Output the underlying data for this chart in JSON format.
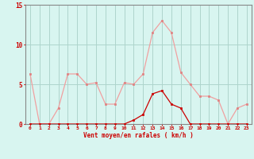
{
  "x": [
    0,
    1,
    2,
    3,
    4,
    5,
    6,
    7,
    8,
    9,
    10,
    11,
    12,
    13,
    14,
    15,
    16,
    17,
    18,
    19,
    20,
    21,
    22,
    23
  ],
  "rafales": [
    6.3,
    0.0,
    0.0,
    2.0,
    6.3,
    6.3,
    5.0,
    5.2,
    2.5,
    2.5,
    5.2,
    5.0,
    6.3,
    11.5,
    13.0,
    11.5,
    6.5,
    5.0,
    3.5,
    3.5,
    3.0,
    0.0,
    2.0,
    2.5
  ],
  "vent_moyen": [
    0.0,
    0.0,
    0.0,
    0.0,
    0.0,
    0.0,
    0.0,
    0.0,
    0.0,
    0.0,
    0.0,
    0.5,
    1.2,
    3.8,
    4.2,
    2.5,
    2.0,
    0.0,
    0.0,
    0.0,
    0.0,
    0.0,
    0.0,
    0.0
  ],
  "ylim": [
    0,
    15
  ],
  "yticks": [
    0,
    5,
    10,
    15
  ],
  "xlabel": "Vent moyen/en rafales ( km/h )",
  "bg_color": "#d8f5f0",
  "grid_color": "#aed4cc",
  "rafales_color": "#f0a0a0",
  "vent_color": "#cc0000",
  "marker_color_rafales": "#e08080",
  "marker_color_vent": "#cc0000",
  "tick_color": "#cc0000",
  "label_color": "#cc0000",
  "spine_color": "#888888"
}
